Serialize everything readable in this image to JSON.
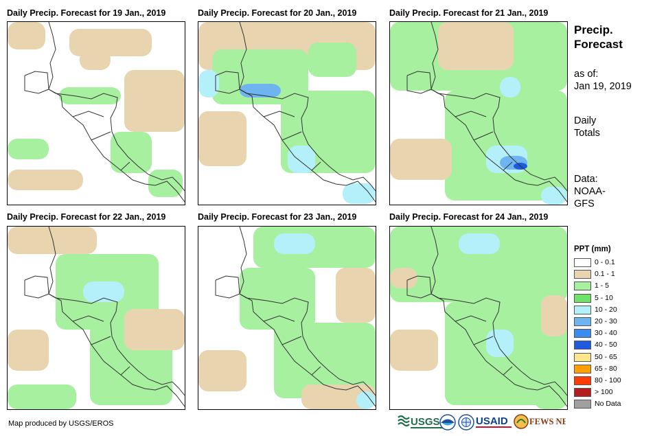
{
  "panels": [
    {
      "title": "Daily Precip. Forecast for 19 Jan., 2019"
    },
    {
      "title": "Daily Precip. Forecast for 20 Jan., 2019"
    },
    {
      "title": "Daily Precip. Forecast for 21 Jan., 2019"
    },
    {
      "title": "Daily Precip. Forecast for 22 Jan., 2019"
    },
    {
      "title": "Daily Precip. Forecast for 23 Jan., 2019"
    },
    {
      "title": "Daily Precip. Forecast for 24 Jan., 2019"
    }
  ],
  "sidebar": {
    "title_line1": "Precip.",
    "title_line2": "Forecast",
    "asof_line1": "as of:",
    "asof_line2": "Jan 19, 2019",
    "totals_line1": "Daily",
    "totals_line2": "Totals",
    "data_line1": "Data:",
    "data_line2": "NOAA-",
    "data_line3": "GFS"
  },
  "legend": {
    "title": "PPT (mm)",
    "items": [
      {
        "label": "0 - 0.1",
        "color": "#ffffff"
      },
      {
        "label": "0.1 - 1",
        "color": "#e8d5b0"
      },
      {
        "label": "1 - 5",
        "color": "#a6f0a0"
      },
      {
        "label": "5 - 10",
        "color": "#6ee26a"
      },
      {
        "label": "10 - 20",
        "color": "#b4f0fa"
      },
      {
        "label": "20 - 30",
        "color": "#6eb4f0"
      },
      {
        "label": "30 - 40",
        "color": "#3c8cf0"
      },
      {
        "label": "40 - 50",
        "color": "#1e5adc"
      },
      {
        "label": "50 - 65",
        "color": "#ffe68c"
      },
      {
        "label": "65 - 80",
        "color": "#ffa000"
      },
      {
        "label": "80 - 100",
        "color": "#ff3c00"
      },
      {
        "label": "> 100",
        "color": "#b41e1e"
      },
      {
        "label": "No Data",
        "color": "#a0a0a0"
      }
    ]
  },
  "footer": {
    "credit": "Map produced by USGS/EROS"
  },
  "logos": {
    "usgs": "USGS",
    "usaid": "USAID",
    "fewsnet": "FEWS NET"
  }
}
